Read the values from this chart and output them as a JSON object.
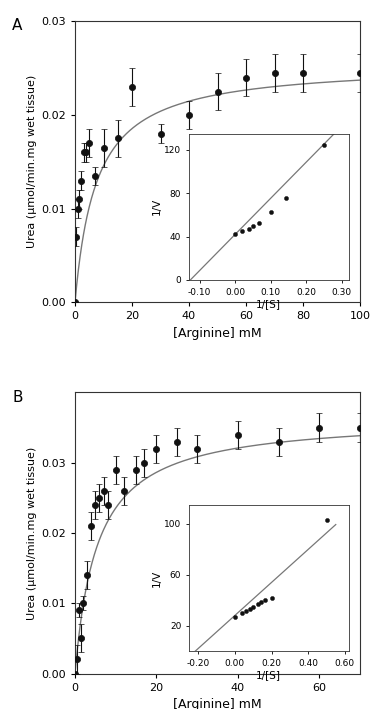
{
  "panel_A": {
    "x": [
      0,
      0.5,
      1.0,
      1.5,
      2.0,
      3.0,
      4.0,
      5.0,
      7.0,
      10.0,
      15.0,
      20.0,
      30.0,
      40.0,
      50.0,
      60.0,
      70.0,
      80.0,
      100.0
    ],
    "y": [
      0.0,
      0.007,
      0.01,
      0.011,
      0.013,
      0.016,
      0.016,
      0.017,
      0.0135,
      0.0165,
      0.0175,
      0.023,
      0.018,
      0.02,
      0.0225,
      0.024,
      0.0245,
      0.0245,
      0.0245
    ],
    "yerr": [
      0.0,
      0.001,
      0.001,
      0.001,
      0.001,
      0.001,
      0.001,
      0.0015,
      0.001,
      0.002,
      0.002,
      0.002,
      0.001,
      0.0015,
      0.002,
      0.002,
      0.002,
      0.002,
      0.002
    ],
    "Vmax": 0.0255,
    "Km": 7.5,
    "xlabel": "[Arginine] mM",
    "ylabel": "Urea (µmol/min.mg wet tissue)",
    "xlim": [
      0,
      100
    ],
    "ylim": [
      0.0,
      0.03
    ],
    "yticks": [
      0.0,
      0.01,
      0.02,
      0.03
    ],
    "xticks": [
      0,
      20,
      40,
      60,
      80,
      100
    ],
    "label": "A",
    "inset": {
      "pts_x": [
        0.0,
        0.02,
        0.04,
        0.05,
        0.067,
        0.1,
        0.143,
        0.25
      ],
      "pts_y": [
        42.0,
        45.0,
        47.0,
        50.0,
        53.0,
        63.0,
        76.0,
        125.0
      ],
      "line_x": [
        -0.13,
        0.3
      ],
      "line_slope": 333.0,
      "line_intercept": 42.0,
      "xlim": [
        -0.13,
        0.32
      ],
      "ylim": [
        0,
        135
      ],
      "xlabel": "1/[S]",
      "ylabel": "1/V",
      "xticks": [
        -0.1,
        0.0,
        0.1,
        0.2,
        0.3
      ],
      "yticks": [
        0,
        40,
        80,
        120
      ]
    }
  },
  "panel_B": {
    "x": [
      0,
      0.5,
      1.0,
      1.5,
      2.0,
      3.0,
      4.0,
      5.0,
      6.0,
      7.0,
      8.0,
      10.0,
      12.0,
      15.0,
      17.0,
      20.0,
      25.0,
      30.0,
      40.0,
      50.0,
      60.0,
      70.0
    ],
    "y": [
      0.0,
      0.002,
      0.009,
      0.005,
      0.01,
      0.014,
      0.021,
      0.024,
      0.025,
      0.026,
      0.024,
      0.029,
      0.026,
      0.029,
      0.03,
      0.032,
      0.033,
      0.032,
      0.034,
      0.033,
      0.035,
      0.035
    ],
    "yerr": [
      0.0,
      0.002,
      0.001,
      0.002,
      0.001,
      0.002,
      0.002,
      0.002,
      0.002,
      0.002,
      0.002,
      0.002,
      0.002,
      0.002,
      0.002,
      0.002,
      0.002,
      0.002,
      0.002,
      0.002,
      0.002,
      0.002
    ],
    "Vmax": 0.0365,
    "Km": 5.5,
    "xlabel": "[Arginine] mM",
    "ylabel": "Urea (µmol/min.mg wet tissue)",
    "xlim": [
      0,
      70
    ],
    "ylim": [
      0.0,
      0.04
    ],
    "yticks": [
      0.0,
      0.01,
      0.02,
      0.03
    ],
    "xticks": [
      0,
      20,
      40,
      60
    ],
    "label": "B",
    "inset": {
      "pts_x": [
        0.0,
        0.04,
        0.063,
        0.083,
        0.1,
        0.125,
        0.143,
        0.167,
        0.2,
        0.5
      ],
      "pts_y": [
        27.0,
        30.0,
        31.5,
        33.0,
        35.0,
        37.0,
        38.5,
        40.0,
        42.0,
        103.0
      ],
      "line_x": [
        -0.23,
        0.55
      ],
      "line_slope": 130.0,
      "line_intercept": 28.0,
      "xlim": [
        -0.25,
        0.62
      ],
      "ylim": [
        0,
        115
      ],
      "xlabel": "1/[S]",
      "ylabel": "1/V",
      "xticks": [
        -0.2,
        0.0,
        0.2,
        0.4,
        0.6
      ],
      "yticks": [
        20,
        60,
        100
      ]
    }
  },
  "marker_color": "#111111",
  "line_color": "#777777",
  "marker_size": 4.5,
  "linewidth": 1.0,
  "bg_color": "#ffffff"
}
